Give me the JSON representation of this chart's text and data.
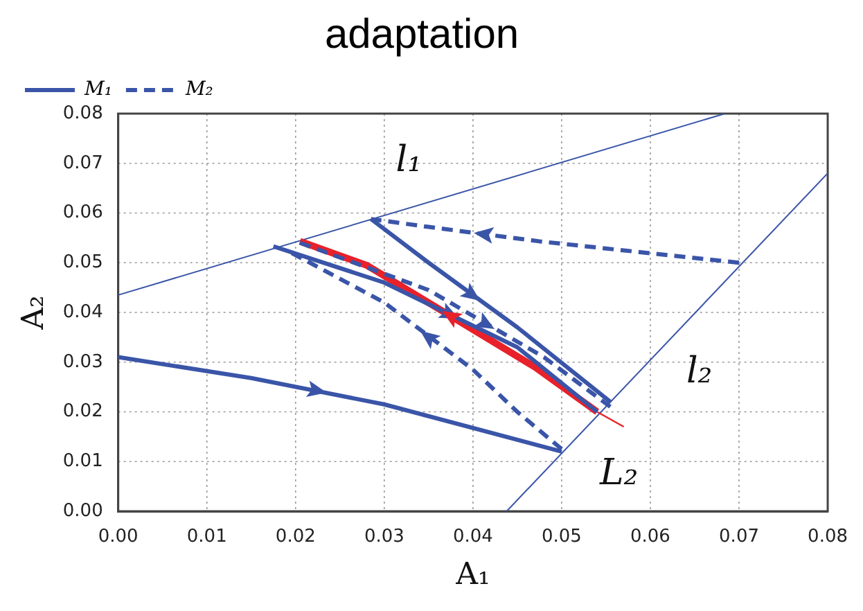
{
  "chart_data": {
    "type": "line",
    "title": "adaptation",
    "xlabel": "A₁",
    "ylabel": "A₂",
    "xlim": [
      0,
      0.08
    ],
    "ylim": [
      0,
      0.08
    ],
    "xticks": [
      {
        "value": 0,
        "label": "0.00"
      },
      {
        "value": 0.01,
        "label": "0.01"
      },
      {
        "value": 0.02,
        "label": "0.02"
      },
      {
        "value": 0.03,
        "label": "0.03"
      },
      {
        "value": 0.04,
        "label": "0.04"
      },
      {
        "value": 0.05,
        "label": "0.05"
      },
      {
        "value": 0.06,
        "label": "0.06"
      },
      {
        "value": 0.07,
        "label": "0.07"
      },
      {
        "value": 0.08,
        "label": "0.08"
      }
    ],
    "yticks": [
      {
        "value": 0,
        "label": "0.00"
      },
      {
        "value": 0.01,
        "label": "0.01"
      },
      {
        "value": 0.02,
        "label": "0.02"
      },
      {
        "value": 0.03,
        "label": "0.03"
      },
      {
        "value": 0.04,
        "label": "0.04"
      },
      {
        "value": 0.05,
        "label": "0.05"
      },
      {
        "value": 0.06,
        "label": "0.06"
      },
      {
        "value": 0.07,
        "label": "0.07"
      },
      {
        "value": 0.08,
        "label": "0.08"
      }
    ],
    "grid": true,
    "legend": "top left",
    "marker": "none",
    "series": [
      {
        "name": "M₁",
        "color": "#3a55a8",
        "line_style": "solid",
        "x": [
          0,
          0.015,
          0.03,
          0.05
        ],
        "values": [
          0.031,
          0.0268,
          0.0215,
          0.012
        ]
      },
      {
        "name": "M₂",
        "color": "#3a55a8",
        "line_style": "dashed",
        "x": [
          0.07,
          0.0475,
          0.035,
          0.0285
        ],
        "values": [
          0.05,
          0.0543,
          0.0572,
          0.0588
        ]
      },
      {
        "color": "#3a55a8",
        "line_style": "solid",
        "x": [
          0.0285,
          0.035,
          0.045,
          0.0555
        ],
        "values": [
          0.0588,
          0.05,
          0.037,
          0.022
        ]
      },
      {
        "color": "#3a55a8",
        "line_style": "solid",
        "x": [
          0.0175,
          0.03,
          0.045,
          0.054
        ],
        "values": [
          0.0533,
          0.046,
          0.033,
          0.02
        ]
      },
      {
        "color": "#3a55a8",
        "line_style": "dashed",
        "x": [
          0.05,
          0.045,
          0.04,
          0.03,
          0.019
        ],
        "values": [
          0.0125,
          0.02,
          0.0285,
          0.042,
          0.0525
        ]
      },
      {
        "color": "#3a55a8",
        "line_style": "dashed",
        "x": [
          0.0205,
          0.035,
          0.048,
          0.0555
        ],
        "values": [
          0.054,
          0.0445,
          0.031,
          0.021
        ]
      },
      {
        "color": "#e8212a",
        "line_style": "solid",
        "x": [
          0.054,
          0.047,
          0.028,
          0.0205
        ],
        "values": [
          0.02,
          0.029,
          0.0495,
          0.0543
        ]
      },
      {
        "name": "L₂",
        "color": "#e8212a",
        "line_style": "solid",
        "x": [
          0.054,
          0.057
        ],
        "values": [
          0.02,
          0.017
        ]
      },
      {
        "name": "l₁",
        "color": "#3a55a8",
        "line_style": "solid",
        "x": [
          0,
          0.0684
        ],
        "values": [
          0.0435,
          0.08
        ]
      },
      {
        "name": "l₂",
        "color": "#3a55a8",
        "line_style": "solid",
        "x": [
          0.0438,
          0.08
        ],
        "values": [
          0,
          0.068
        ]
      }
    ]
  }
}
